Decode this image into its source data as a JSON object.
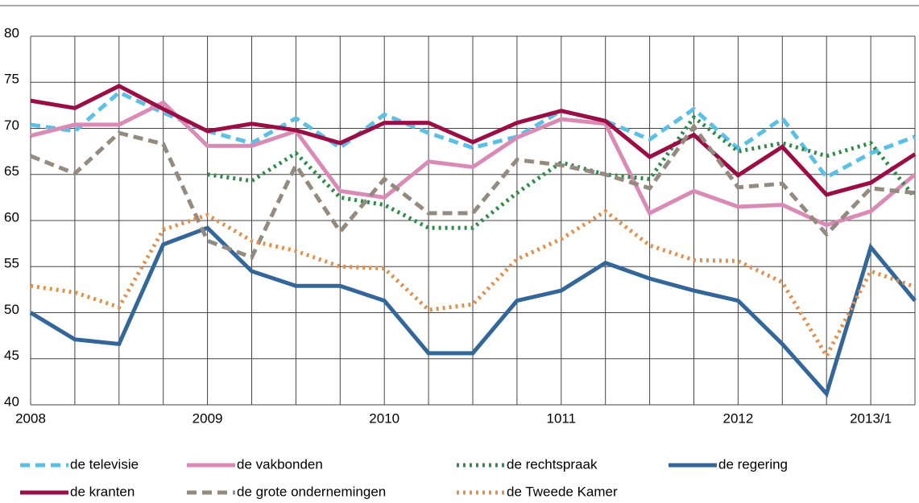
{
  "chart_data": {
    "type": "line",
    "categories": [
      "2008",
      null,
      null,
      null,
      "2009",
      null,
      null,
      null,
      "2010",
      null,
      null,
      null,
      "1011",
      null,
      null,
      null,
      "2012",
      null,
      null,
      "2013/1",
      null
    ],
    "ylim": [
      40,
      80
    ],
    "yticks": [
      40,
      45,
      50,
      55,
      60,
      65,
      70,
      75,
      80
    ],
    "grid": true,
    "series": [
      {
        "name": "de televisie",
        "color": "#5bc0e6",
        "style": "dashed",
        "values": [
          70.4,
          69.7,
          73.9,
          71.7,
          69.7,
          68.4,
          71.1,
          67.9,
          71.5,
          69.5,
          67.9,
          69.1,
          71.9,
          70.8,
          68.8,
          72.1,
          67.8,
          71.1,
          64.7,
          67.3,
          69.1
        ]
      },
      {
        "name": "de vakbonden",
        "color": "#d98bb5",
        "style": "solid",
        "values": [
          69.2,
          70.4,
          70.4,
          72.8,
          68.1,
          68.1,
          69.7,
          63.2,
          62.5,
          66.4,
          65.8,
          69.0,
          71.0,
          70.5,
          60.8,
          63.2,
          61.5,
          61.7,
          59.5,
          61.0,
          65.0
        ]
      },
      {
        "name": "de rechtspraak",
        "color": "#2e8b48",
        "style": "dotted",
        "values": [
          null,
          null,
          null,
          null,
          65.0,
          64.3,
          67.3,
          62.5,
          61.7,
          59.2,
          59.2,
          63.0,
          66.3,
          65.0,
          64.5,
          71.2,
          67.5,
          68.4,
          67.0,
          68.4,
          62.5
        ]
      },
      {
        "name": "de regering",
        "color": "#336699",
        "style": "solid",
        "values": [
          50.0,
          47.1,
          46.6,
          57.4,
          59.2,
          54.5,
          52.9,
          52.9,
          51.3,
          45.6,
          45.6,
          51.3,
          52.4,
          55.4,
          53.7,
          52.4,
          51.3,
          46.6,
          41.2,
          57.1,
          51.3
        ]
      },
      {
        "name": "de kranten",
        "color": "#9b0d44",
        "style": "solid",
        "values": [
          73.0,
          72.2,
          74.6,
          72.1,
          69.7,
          70.5,
          69.8,
          68.4,
          70.6,
          70.6,
          68.5,
          70.6,
          71.9,
          70.8,
          66.9,
          69.3,
          64.9,
          68.0,
          62.8,
          64.1,
          67.2
        ]
      },
      {
        "name": "de grote ondernemingen",
        "color": "#948b80",
        "style": "dashed",
        "values": [
          67.0,
          65.1,
          69.5,
          68.3,
          57.8,
          56.0,
          66.0,
          58.8,
          64.5,
          60.8,
          60.8,
          66.6,
          66.0,
          65.0,
          63.5,
          70.2,
          63.6,
          64.0,
          58.5,
          63.5,
          63.0
        ]
      },
      {
        "name": "de Tweede Kamer",
        "color": "#e0914f",
        "style": "dotted",
        "values": [
          52.9,
          52.2,
          50.6,
          59.0,
          60.6,
          57.8,
          56.7,
          55.0,
          54.8,
          50.3,
          50.9,
          55.8,
          58.0,
          61.0,
          57.3,
          55.7,
          55.6,
          53.3,
          45.3,
          54.5,
          52.8
        ]
      }
    ]
  }
}
